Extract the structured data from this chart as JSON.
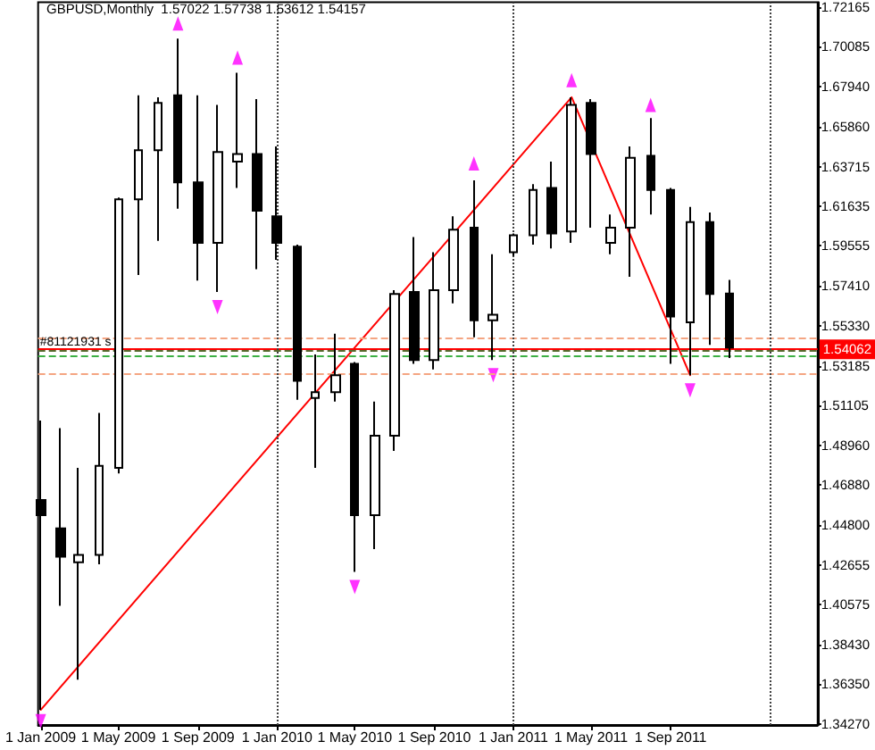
{
  "chart_data": {
    "type": "candlestick",
    "title": "GBPUSD,Monthly  1.57022 1.57738 1.53612 1.54157",
    "series": [
      {
        "color": "#000000",
        "x": [
          "2009-01",
          "2009-02",
          "2009-03",
          "2009-04",
          "2009-05",
          "2009-06",
          "2009-07",
          "2009-08",
          "2009-09",
          "2009-10",
          "2009-11",
          "2009-12",
          "2010-01",
          "2010-02",
          "2010-03",
          "2010-04",
          "2010-05",
          "2010-06",
          "2010-07",
          "2010-08",
          "2010-09",
          "2010-10",
          "2010-11",
          "2010-12",
          "2011-01",
          "2011-02",
          "2011-03",
          "2011-04",
          "2011-05",
          "2011-06",
          "2011-07",
          "2011-08",
          "2011-09",
          "2011-10",
          "2011-11",
          "2011-12"
        ],
        "ohlc": [
          [
            1.461,
            1.503,
            1.35,
            1.453
          ],
          [
            1.446,
            1.499,
            1.405,
            1.431
          ],
          [
            1.428,
            1.478,
            1.366,
            1.432
          ],
          [
            1.432,
            1.507,
            1.427,
            1.479
          ],
          [
            1.478,
            1.621,
            1.475,
            1.62
          ],
          [
            1.62,
            1.675,
            1.58,
            1.646
          ],
          [
            1.646,
            1.674,
            1.598,
            1.671
          ],
          [
            1.675,
            1.705,
            1.615,
            1.629
          ],
          [
            1.629,
            1.675,
            1.577,
            1.597
          ],
          [
            1.597,
            1.67,
            1.571,
            1.645
          ],
          [
            1.64,
            1.687,
            1.626,
            1.644
          ],
          [
            1.644,
            1.673,
            1.583,
            1.614
          ],
          [
            1.611,
            1.648,
            1.588,
            1.597
          ],
          [
            1.595,
            1.596,
            1.514,
            1.524
          ],
          [
            1.515,
            1.538,
            1.478,
            1.518
          ],
          [
            1.518,
            1.549,
            1.513,
            1.527
          ],
          [
            1.533,
            1.534,
            1.423,
            1.453
          ],
          [
            1.453,
            1.513,
            1.435,
            1.495
          ],
          [
            1.495,
            1.572,
            1.487,
            1.57
          ],
          [
            1.571,
            1.6,
            1.533,
            1.535
          ],
          [
            1.535,
            1.592,
            1.53,
            1.572
          ],
          [
            1.572,
            1.611,
            1.565,
            1.604
          ],
          [
            1.605,
            1.63,
            1.547,
            1.556
          ],
          [
            1.556,
            1.591,
            1.535,
            1.559
          ],
          [
            1.592,
            1.602,
            1.59,
            1.601
          ],
          [
            1.601,
            1.628,
            1.596,
            1.625
          ],
          [
            1.626,
            1.64,
            1.594,
            1.602
          ],
          [
            1.603,
            1.674,
            1.597,
            1.67
          ],
          [
            1.671,
            1.673,
            1.605,
            1.644
          ],
          [
            1.597,
            1.612,
            1.591,
            1.605
          ],
          [
            1.605,
            1.648,
            1.579,
            1.642
          ],
          [
            1.643,
            1.663,
            1.612,
            1.625
          ],
          [
            1.625,
            1.626,
            1.533,
            1.558
          ],
          [
            1.555,
            1.616,
            1.527,
            1.608
          ],
          [
            1.608,
            1.613,
            1.543,
            1.57
          ],
          [
            1.57022,
            1.57738,
            1.53612,
            1.54157
          ]
        ],
        "colors": [
          "#000000",
          "#000000",
          "#ffffff",
          "#ffffff",
          "#ffffff",
          "#ffffff",
          "#ffffff",
          "#000000",
          "#000000",
          "#ffffff",
          "#ffffff",
          "#000000",
          "#000000",
          "#000000",
          "#ffffff",
          "#ffffff",
          "#000000",
          "#ffffff",
          "#ffffff",
          "#000000",
          "#ffffff",
          "#ffffff",
          "#000000",
          "#ffffff",
          "#ffffff",
          "#ffffff",
          "#000000",
          "#ffffff",
          "#000000",
          "#ffffff",
          "#ffffff",
          "#000000",
          "#000000",
          "#ffffff",
          "#000000",
          "#000000"
        ]
      },
      {
        "type": "scatter",
        "color": "#ff00ff",
        "marker": "triangle",
        "x": [
          "2009-08",
          "2009-11",
          "2010-11",
          "2011-04",
          "2011-08",
          "2009-01",
          "2009-10",
          "2010-05",
          "2010-12",
          "2011-10"
        ],
        "values": [
          1.713,
          1.695,
          1.639,
          1.683,
          1.67,
          1.344,
          1.563,
          1.415,
          1.527,
          1.519
        ]
      },
      {
        "type": "line",
        "color": "#ff0000",
        "marker": "none",
        "line_style": "solid",
        "x": [
          "2009-01",
          "2011-04",
          "2011-10"
        ],
        "values": [
          1.35,
          1.674,
          1.527
        ]
      }
    ],
    "xlim": [
      "2008-12-28",
      "2012-04-15"
    ],
    "xticks": [
      {
        "value": "2009-01",
        "label": "1 Jan 2009"
      },
      {
        "value": "2009-05",
        "label": "1 May 2009"
      },
      {
        "value": "2009-09",
        "label": "1 Sep 2009"
      },
      {
        "value": "2010-01",
        "label": "1 Jan 2010"
      },
      {
        "value": "2010-05",
        "label": "1 May 2010"
      },
      {
        "value": "2010-09",
        "label": "1 Sep 2010"
      },
      {
        "value": "2011-01",
        "label": "1 Jan 2011"
      },
      {
        "value": "2011-05",
        "label": "1 May 2011"
      },
      {
        "value": "2011-09",
        "label": "1 Sep 2011"
      }
    ],
    "ylim": [
      1.342,
      1.7242
    ],
    "yticks": [
      1.72165,
      1.70085,
      {
        "value": 1.6794,
        "label": "1.67940"
      },
      {
        "value": 1.6586,
        "label": "1.65860"
      },
      1.63715,
      1.61635,
      1.59555,
      {
        "value": 1.5741,
        "label": "1.57410"
      },
      {
        "value": 1.5533,
        "label": "1.55330"
      },
      1.53185,
      1.51105,
      {
        "value": 1.4896,
        "label": "1.48960"
      },
      {
        "value": 1.4688,
        "label": "1.46880"
      },
      {
        "value": 1.448,
        "label": "1.44800"
      },
      1.42655,
      1.40575,
      {
        "value": 1.3843,
        "label": "1.38430"
      },
      {
        "value": 1.3635,
        "label": "1.36350"
      },
      {
        "value": 1.3427,
        "label": "1.34270"
      }
    ],
    "ref_lines": [
      {
        "axis": "y",
        "value": 1.547,
        "color": "#f4a582",
        "line_style": "dashed"
      },
      {
        "axis": "y",
        "value": 1.54062,
        "label": "1.54062",
        "color": "#ff0000",
        "line_style": "solid"
      },
      {
        "axis": "y",
        "value": 1.54,
        "label": "#81121931 s",
        "color": "#556b2f",
        "line_style": "dashed"
      },
      {
        "axis": "y",
        "value": 1.537,
        "color": "#3cb043",
        "line_style": "dashed"
      },
      {
        "axis": "y",
        "value": 1.528,
        "color": "#f4a582",
        "line_style": "dashed"
      },
      {
        "axis": "x",
        "value": "2010-01",
        "color": "#404040",
        "line_style": "dotted"
      },
      {
        "axis": "x",
        "value": "2011-01",
        "color": "#404040",
        "line_style": "dotted"
      },
      {
        "axis": "x",
        "value": "2012-02",
        "color": "#404040",
        "line_style": "dotted"
      }
    ]
  }
}
